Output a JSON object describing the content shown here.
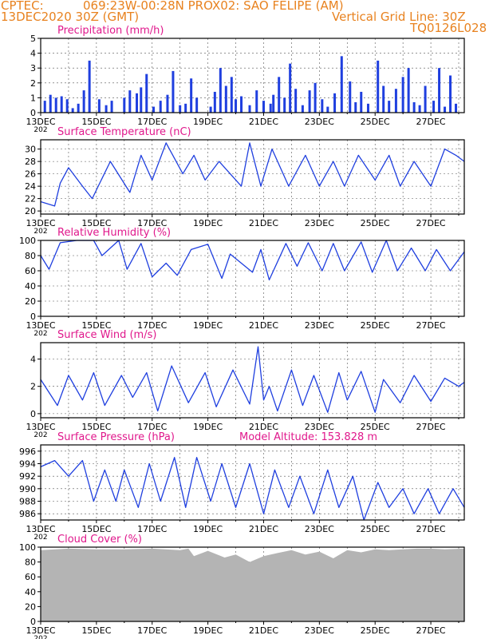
{
  "header": {
    "line1_left": "CPTEC:",
    "line1_mid": "069:23W-00:28N   PROX02: SAO FELIPE (AM)",
    "line2_left": "13DEC2020 30Z (GMT)",
    "line2_right": "Vertical Grid Line: 30Z",
    "code": "TQ0126L028"
  },
  "colors": {
    "header": "#e8821f",
    "title": "#e0188c",
    "series": "#1f3fdf",
    "cloud": "#b4b4b4",
    "grid": "#555555"
  },
  "x_axis": {
    "tick_labels": [
      "13DEC",
      "15DEC",
      "17DEC",
      "19DEC",
      "21DEC",
      "23DEC",
      "25DEC",
      "27DEC"
    ],
    "year_fragment": "202"
  },
  "chart_data": [
    {
      "type": "bar",
      "title": "Precipitation (mm/h)",
      "ylim": [
        0,
        5
      ],
      "y_ticks": [
        0,
        1,
        2,
        3,
        4,
        5
      ],
      "grid": true,
      "x": [
        0.15,
        0.35,
        0.55,
        0.75,
        0.95,
        1.15,
        1.35,
        1.55,
        1.75,
        2.1,
        2.35,
        2.55,
        3.0,
        3.2,
        3.45,
        3.6,
        3.8,
        4.05,
        4.3,
        4.55,
        4.75,
        5.0,
        5.2,
        5.4,
        5.6,
        6.1,
        6.25,
        6.45,
        6.65,
        6.85,
        7.0,
        7.2,
        7.5,
        7.75,
        8.0,
        8.25,
        8.35,
        8.55,
        8.75,
        8.95,
        9.15,
        9.4,
        9.65,
        9.85,
        10.1,
        10.3,
        10.55,
        10.8,
        11.1,
        11.3,
        11.5,
        11.75,
        12.1,
        12.3,
        12.5,
        12.75,
        13.0,
        13.2,
        13.4,
        13.6,
        13.8,
        14.1,
        14.3,
        14.5,
        14.7,
        14.9
      ],
      "values": [
        0.8,
        1.2,
        1.0,
        1.1,
        0.9,
        0.3,
        0.6,
        1.5,
        3.5,
        0.9,
        0.5,
        0.8,
        1.0,
        1.5,
        1.3,
        1.7,
        2.6,
        0.4,
        0.8,
        1.2,
        2.8,
        0.5,
        0.6,
        2.3,
        1.0,
        0.4,
        1.4,
        3.0,
        1.8,
        2.4,
        0.9,
        1.1,
        0.5,
        1.5,
        0.8,
        0.6,
        1.2,
        2.4,
        1.0,
        3.3,
        1.6,
        0.5,
        1.5,
        2.0,
        0.9,
        0.4,
        1.3,
        3.8,
        2.1,
        0.7,
        1.4,
        0.6,
        3.5,
        1.8,
        0.8,
        1.6,
        2.4,
        3.0,
        0.7,
        0.5,
        1.8,
        0.8,
        3.0,
        0.4,
        2.5,
        0.6
      ]
    },
    {
      "type": "line",
      "title": "Surface Temperature (nC)",
      "ylim": [
        19.5,
        31.5
      ],
      "y_ticks": [
        20,
        22,
        24,
        26,
        28,
        30
      ],
      "grid": true,
      "x": [
        0,
        0.5,
        0.7,
        1.0,
        1.5,
        1.85,
        2.5,
        3.2,
        3.6,
        4.0,
        4.5,
        5.1,
        5.5,
        5.9,
        6.4,
        7.2,
        7.5,
        7.9,
        8.3,
        8.9,
        9.5,
        10.0,
        10.5,
        10.9,
        11.4,
        12.0,
        12.5,
        12.9,
        13.4,
        14.0,
        14.5,
        14.9,
        15.2
      ],
      "values": [
        21.5,
        20.8,
        24.5,
        27,
        24,
        22,
        28,
        23,
        29,
        25,
        31,
        26,
        29,
        25,
        28,
        24,
        31,
        24,
        30,
        24,
        29,
        24,
        28,
        24,
        29,
        25,
        29,
        24,
        28,
        24,
        30,
        29,
        28
      ]
    },
    {
      "type": "line",
      "title": "Relative Humidity (%)",
      "ylim": [
        0,
        100
      ],
      "y_ticks": [
        0,
        20,
        40,
        60,
        80,
        100
      ],
      "grid": true,
      "x": [
        0,
        0.3,
        0.7,
        1.3,
        1.9,
        2.2,
        2.8,
        3.1,
        3.6,
        4.0,
        4.5,
        4.9,
        5.4,
        6.0,
        6.5,
        6.8,
        7.6,
        7.9,
        8.2,
        8.8,
        9.2,
        9.6,
        10.1,
        10.5,
        10.9,
        11.5,
        11.9,
        12.4,
        12.8,
        13.3,
        13.8,
        14.2,
        14.7,
        15.2
      ],
      "values": [
        80,
        62,
        97,
        100,
        100,
        80,
        100,
        62,
        96,
        52,
        70,
        54,
        88,
        95,
        50,
        82,
        58,
        88,
        48,
        96,
        66,
        97,
        60,
        96,
        60,
        98,
        58,
        100,
        60,
        90,
        60,
        88,
        60,
        85
      ]
    },
    {
      "type": "line",
      "title": "Surface Wind (m/s)",
      "ylim": [
        -0.3,
        5.2
      ],
      "y_ticks": [
        0,
        2,
        4
      ],
      "grid": true,
      "x": [
        0,
        0.6,
        1.0,
        1.5,
        1.9,
        2.3,
        2.9,
        3.3,
        3.8,
        4.2,
        4.7,
        5.3,
        5.9,
        6.3,
        6.9,
        7.5,
        7.8,
        8.0,
        8.2,
        8.5,
        9.0,
        9.4,
        9.8,
        10.3,
        10.7,
        11.0,
        11.5,
        12.0,
        12.3,
        12.9,
        13.4,
        14.0,
        14.5,
        15.0,
        15.2
      ],
      "values": [
        2.5,
        0.6,
        2.8,
        1.0,
        3.0,
        0.6,
        2.8,
        1.2,
        3.0,
        0.2,
        3.5,
        0.8,
        3.0,
        0.5,
        3.2,
        0.7,
        4.9,
        1.0,
        2.0,
        0.2,
        3.2,
        0.6,
        2.8,
        0.1,
        3.0,
        1.0,
        3.1,
        0.1,
        2.5,
        0.8,
        2.8,
        0.9,
        2.6,
        2.0,
        2.3
      ]
    },
    {
      "type": "line",
      "title": "Surface Pressure (hPa)",
      "annotation": "Model Altitude: 153.828 m",
      "ylim": [
        985,
        997
      ],
      "y_ticks": [
        986,
        988,
        990,
        992,
        994,
        996
      ],
      "grid": true,
      "x": [
        0,
        0.5,
        1.0,
        1.5,
        1.9,
        2.3,
        2.7,
        3.0,
        3.5,
        3.9,
        4.3,
        4.8,
        5.2,
        5.6,
        6.1,
        6.5,
        7.0,
        7.5,
        8.0,
        8.4,
        8.9,
        9.3,
        9.8,
        10.3,
        10.7,
        11.2,
        11.6,
        12.1,
        12.5,
        13.0,
        13.4,
        13.9,
        14.3,
        14.8,
        15.2
      ],
      "values": [
        993.5,
        994.5,
        992,
        994.5,
        988,
        993,
        988,
        993,
        987,
        994,
        988,
        995,
        987,
        995,
        988,
        994,
        987,
        994,
        986,
        993,
        987,
        992,
        986,
        993,
        987,
        992,
        985,
        991,
        987,
        990,
        986,
        990,
        986,
        990,
        987
      ]
    },
    {
      "type": "area",
      "title": "Cloud Cover (%)",
      "ylim": [
        0,
        100
      ],
      "y_ticks": [
        0,
        20,
        40,
        60,
        80,
        100
      ],
      "grid": true,
      "x": [
        0,
        1.0,
        2.0,
        3.0,
        4.0,
        5.0,
        5.3,
        5.5,
        6.0,
        6.6,
        7.0,
        7.5,
        8.0,
        8.5,
        9.0,
        9.5,
        10.0,
        10.5,
        11.0,
        11.5,
        12.0,
        12.5,
        13.0,
        13.5,
        14.0,
        14.5,
        15.2
      ],
      "values": [
        96,
        98,
        97,
        97,
        98,
        96,
        98,
        88,
        95,
        86,
        90,
        80,
        88,
        92,
        96,
        90,
        94,
        85,
        96,
        93,
        97,
        96,
        97,
        98,
        98,
        97,
        98
      ]
    }
  ]
}
